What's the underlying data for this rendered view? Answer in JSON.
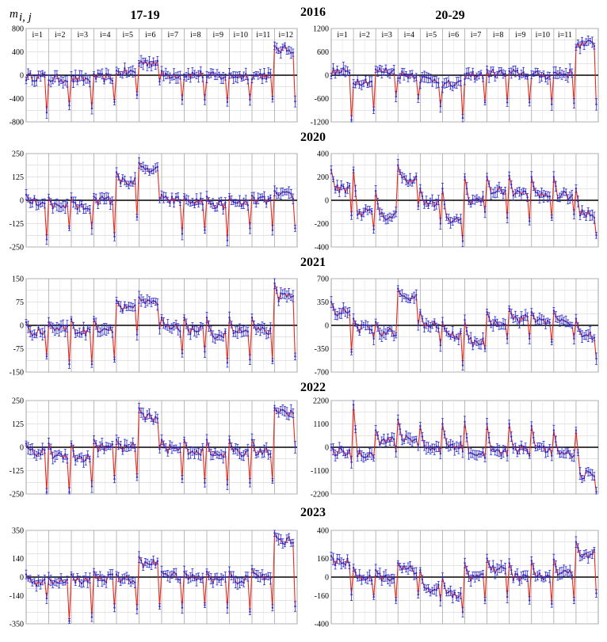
{
  "figure": {
    "y_label": "m",
    "y_label_subscript": "i, j",
    "column_titles": [
      "17-19",
      "20-29"
    ],
    "years": [
      "2016",
      "2020",
      "2021",
      "2022",
      "2023"
    ],
    "month_labels": [
      "i=1",
      "i=2",
      "i=3",
      "i=4",
      "i=5",
      "i=6",
      "i=7",
      "i=8",
      "i=9",
      "i=10",
      "i=11",
      "i=12"
    ],
    "colors": {
      "line": "#e8281e",
      "points": "#2a2ad0",
      "grid": "#c8c8c8",
      "zero": "#000000"
    }
  },
  "chart_data": [
    {
      "type": "line",
      "year": "2016",
      "group": "17-19",
      "ylim": [
        -800,
        800
      ],
      "ticks": [
        -800,
        -400,
        0,
        400,
        800
      ],
      "month_levels": [
        -30,
        -60,
        -70,
        -40,
        50,
        220,
        10,
        10,
        -20,
        -10,
        0,
        440
      ],
      "month_drops": [
        -640,
        -520,
        -570,
        -460,
        -340,
        -110,
        -420,
        -420,
        -460,
        -420,
        -410,
        -450
      ]
    },
    {
      "type": "line",
      "year": "2016",
      "group": "20-29",
      "ylim": [
        -1200,
        1200
      ],
      "ticks": [
        -1200,
        -600,
        0,
        600,
        1200
      ],
      "month_levels": [
        80,
        -150,
        100,
        20,
        -100,
        -250,
        0,
        50,
        40,
        0,
        40,
        800
      ],
      "month_drops": [
        -1150,
        -900,
        -550,
        -600,
        -800,
        -1100,
        -700,
        -700,
        -700,
        -750,
        -720,
        -750
      ]
    },
    {
      "type": "line",
      "year": "2020",
      "group": "17-19",
      "ylim": [
        -250,
        250
      ],
      "ticks": [
        -250,
        -125,
        0,
        125,
        250
      ],
      "month_levels": [
        -10,
        -30,
        -35,
        0,
        100,
        160,
        0,
        -10,
        -25,
        -20,
        0,
        25
      ],
      "month_drops": [
        -210,
        -150,
        -150,
        -195,
        -90,
        0,
        -180,
        -160,
        -215,
        -150,
        -160,
        -150
      ],
      "month_peaks": [
        30,
        15,
        15,
        20,
        150,
        200,
        30,
        20,
        20,
        20,
        25,
        50
      ]
    },
    {
      "type": "line",
      "year": "2020",
      "group": "20-29",
      "ylim": [
        -400,
        400
      ],
      "ticks": [
        -400,
        -200,
        0,
        200,
        400
      ],
      "month_levels": [
        100,
        -100,
        -140,
        180,
        -30,
        -170,
        0,
        80,
        60,
        40,
        40,
        -120
      ],
      "month_drops": [
        -130,
        -250,
        -100,
        -50,
        -200,
        -350,
        -100,
        -150,
        -180,
        -150,
        -120,
        -300
      ],
      "month_peaks": [
        260,
        260,
        80,
        300,
        100,
        100,
        200,
        200,
        210,
        200,
        200,
        100
      ]
    },
    {
      "type": "line",
      "year": "2021",
      "group": "17-19",
      "ylim": [
        -150,
        150
      ],
      "ticks": [
        -150,
        -75,
        0,
        75,
        150
      ],
      "month_levels": [
        -20,
        -10,
        -20,
        -10,
        60,
        70,
        -10,
        -15,
        -30,
        -20,
        -20,
        90
      ],
      "month_drops": [
        -100,
        -125,
        -125,
        -110,
        -30,
        -10,
        -90,
        -85,
        -120,
        -110,
        -115,
        -100
      ],
      "month_peaks": [
        10,
        10,
        20,
        20,
        80,
        90,
        25,
        25,
        25,
        25,
        25,
        135
      ]
    },
    {
      "type": "line",
      "year": "2021",
      "group": "20-29",
      "ylim": [
        -700,
        700
      ],
      "ticks": [
        -700,
        -350,
        0,
        350,
        700
      ],
      "month_levels": [
        200,
        -50,
        -100,
        400,
        0,
        -150,
        -250,
        50,
        100,
        80,
        40,
        -150
      ],
      "month_drops": [
        -400,
        -200,
        -150,
        0,
        -300,
        -600,
        -350,
        -200,
        -200,
        -250,
        -200,
        -500
      ],
      "month_peaks": [
        350,
        100,
        50,
        550,
        200,
        50,
        80,
        200,
        250,
        200,
        220,
        100
      ]
    },
    {
      "type": "line",
      "year": "2022",
      "group": "17-19",
      "ylim": [
        -250,
        250
      ],
      "ticks": [
        -250,
        -125,
        0,
        125,
        250
      ],
      "month_levels": [
        -30,
        -40,
        -60,
        0,
        0,
        160,
        -10,
        -20,
        -40,
        -30,
        -20,
        180
      ],
      "month_drops": [
        -240,
        -240,
        -210,
        -170,
        -160,
        -10,
        -170,
        -190,
        -200,
        -190,
        -180,
        0
      ],
      "month_peaks": [
        20,
        20,
        20,
        40,
        40,
        210,
        40,
        40,
        40,
        40,
        40,
        210
      ]
    },
    {
      "type": "line",
      "year": "2022",
      "group": "20-29",
      "ylim": [
        -2200,
        2200
      ],
      "ticks": [
        -2200,
        -1100,
        0,
        1100,
        2200
      ],
      "month_levels": [
        -200,
        -300,
        300,
        400,
        0,
        100,
        -300,
        -200,
        -100,
        -100,
        -300,
        -1300
      ],
      "month_drops": [
        -700,
        -500,
        -200,
        0,
        -300,
        -200,
        -500,
        -400,
        -400,
        -400,
        -400,
        -2100
      ],
      "month_peaks": [
        0,
        2000,
        800,
        1300,
        1000,
        1100,
        1200,
        1100,
        1100,
        1000,
        800,
        800
      ]
    },
    {
      "type": "line",
      "year": "2023",
      "group": "17-19",
      "ylim": [
        -350,
        350
      ],
      "ticks": [
        -350,
        -140,
        0,
        140,
        350
      ],
      "month_levels": [
        -40,
        -40,
        -20,
        -10,
        -20,
        100,
        10,
        0,
        -20,
        -20,
        0,
        270
      ],
      "month_drops": [
        -160,
        -330,
        -300,
        -230,
        -240,
        -220,
        -230,
        -210,
        -230,
        -260,
        -230,
        -220
      ],
      "month_peaks": [
        20,
        -10,
        20,
        40,
        20,
        150,
        40,
        40,
        40,
        40,
        60,
        330
      ]
    },
    {
      "type": "line",
      "year": "2023",
      "group": "20-29",
      "ylim": [
        -400,
        400
      ],
      "ticks": [
        -400,
        -160,
        0,
        160,
        400
      ],
      "month_levels": [
        130,
        0,
        0,
        60,
        -100,
        -150,
        0,
        60,
        0,
        0,
        30,
        200
      ],
      "month_drops": [
        -150,
        -170,
        -200,
        -150,
        -200,
        -300,
        -200,
        -170,
        -200,
        -230,
        -200,
        -140
      ],
      "month_peaks": [
        180,
        80,
        60,
        120,
        60,
        0,
        120,
        160,
        120,
        140,
        150,
        300
      ]
    }
  ]
}
